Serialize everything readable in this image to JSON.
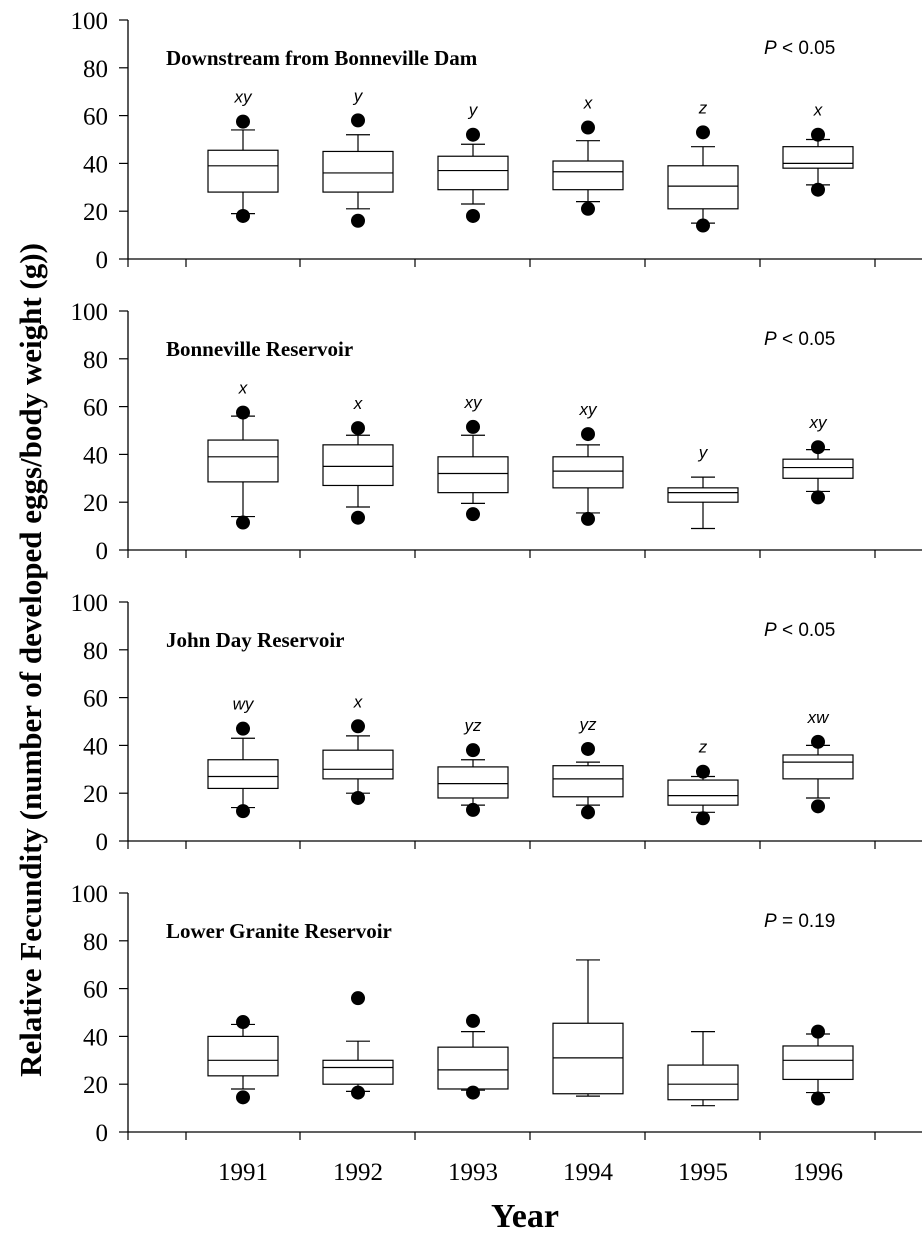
{
  "chart_data": {
    "type": "box",
    "ylabel": "Relative Fecundity (number of developed eggs/body weight (g))",
    "xlabel": "Year",
    "categories": [
      "1991",
      "1992",
      "1993",
      "1994",
      "1995",
      "1996"
    ],
    "ylim": [
      0,
      100
    ],
    "yticks": [
      "0",
      "20",
      "40",
      "60",
      "80",
      "100"
    ],
    "panels": [
      {
        "title": "Downstream from Bonneville Dam",
        "p_symbol": "P",
        "p_rest": " < 0.05",
        "letters": [
          "xy",
          "y",
          "y",
          "x",
          "z",
          "x"
        ],
        "boxes": [
          {
            "whisker_low": 19,
            "q1": 28,
            "median": 39,
            "q3": 45.5,
            "whisker_high": 54,
            "outliers": [
              18,
              57.5
            ]
          },
          {
            "whisker_low": 21,
            "q1": 28,
            "median": 36,
            "q3": 45,
            "whisker_high": 52,
            "outliers": [
              16,
              58
            ]
          },
          {
            "whisker_low": 23,
            "q1": 29,
            "median": 37,
            "q3": 43,
            "whisker_high": 48,
            "outliers": [
              18,
              52
            ]
          },
          {
            "whisker_low": 24,
            "q1": 29,
            "median": 36.5,
            "q3": 41,
            "whisker_high": 49.5,
            "outliers": [
              21,
              55
            ]
          },
          {
            "whisker_low": 15,
            "q1": 21,
            "median": 30.5,
            "q3": 39,
            "whisker_high": 47,
            "outliers": [
              14,
              53
            ]
          },
          {
            "whisker_low": 31,
            "q1": 38,
            "median": 40,
            "q3": 47,
            "whisker_high": 50,
            "outliers": [
              29,
              52
            ]
          }
        ]
      },
      {
        "title": "Bonneville Reservoir",
        "p_symbol": "P",
        "p_rest": " < 0.05",
        "letters": [
          "x",
          "x",
          "xy",
          "xy",
          "y",
          "xy"
        ],
        "boxes": [
          {
            "whisker_low": 14,
            "q1": 28.5,
            "median": 39,
            "q3": 46,
            "whisker_high": 56,
            "outliers": [
              11.5,
              57.5
            ]
          },
          {
            "whisker_low": 18,
            "q1": 27,
            "median": 35,
            "q3": 44,
            "whisker_high": 48,
            "outliers": [
              13.5,
              51
            ]
          },
          {
            "whisker_low": 19.5,
            "q1": 24,
            "median": 32,
            "q3": 39,
            "whisker_high": 48,
            "outliers": [
              15,
              51.5
            ]
          },
          {
            "whisker_low": 15.5,
            "q1": 26,
            "median": 33,
            "q3": 39,
            "whisker_high": 44,
            "outliers": [
              13,
              48.5
            ]
          },
          {
            "whisker_low": 9,
            "q1": 20,
            "median": 24,
            "q3": 26,
            "whisker_high": 30.5,
            "outliers": []
          },
          {
            "whisker_low": 24.5,
            "q1": 30,
            "median": 34.5,
            "q3": 38,
            "whisker_high": 42,
            "outliers": [
              22,
              43
            ]
          }
        ]
      },
      {
        "title": "John Day Reservoir",
        "p_symbol": "P",
        "p_rest": " < 0.05",
        "letters": [
          "wy",
          "x",
          "yz",
          "yz",
          "z",
          "xw"
        ],
        "boxes": [
          {
            "whisker_low": 14,
            "q1": 22,
            "median": 27,
            "q3": 34,
            "whisker_high": 43,
            "outliers": [
              12.5,
              47
            ]
          },
          {
            "whisker_low": 20,
            "q1": 26,
            "median": 30,
            "q3": 38,
            "whisker_high": 44,
            "outliers": [
              18,
              48
            ]
          },
          {
            "whisker_low": 15,
            "q1": 18,
            "median": 24,
            "q3": 31,
            "whisker_high": 34,
            "outliers": [
              13,
              38
            ]
          },
          {
            "whisker_low": 15,
            "q1": 18.5,
            "median": 26,
            "q3": 31.5,
            "whisker_high": 33,
            "outliers": [
              12,
              38.5
            ]
          },
          {
            "whisker_low": 12,
            "q1": 15,
            "median": 19,
            "q3": 25.5,
            "whisker_high": 27,
            "outliers": [
              9.5,
              29
            ]
          },
          {
            "whisker_low": 18,
            "q1": 26,
            "median": 33,
            "q3": 36,
            "whisker_high": 40,
            "outliers": [
              14.5,
              41.5
            ]
          }
        ]
      },
      {
        "title": "Lower Granite Reservoir",
        "p_symbol": "P",
        "p_rest": " = 0.19",
        "letters": [
          "",
          "",
          "",
          "",
          "",
          ""
        ],
        "boxes": [
          {
            "whisker_low": 18,
            "q1": 23.5,
            "median": 30,
            "q3": 40,
            "whisker_high": 45,
            "outliers": [
              14.5,
              46
            ]
          },
          {
            "whisker_low": 17,
            "q1": 20,
            "median": 27,
            "q3": 30,
            "whisker_high": 38,
            "outliers": [
              16.5,
              56
            ]
          },
          {
            "whisker_low": 17.5,
            "q1": 18,
            "median": 26,
            "q3": 35.5,
            "whisker_high": 42,
            "outliers": [
              16.5,
              46.5
            ]
          },
          {
            "whisker_low": 15,
            "q1": 16,
            "median": 31,
            "q3": 45.5,
            "whisker_high": 72,
            "outliers": []
          },
          {
            "whisker_low": 11,
            "q1": 13.5,
            "median": 20,
            "q3": 28,
            "whisker_high": 42,
            "outliers": []
          },
          {
            "whisker_low": 16.5,
            "q1": 22,
            "median": 30,
            "q3": 36,
            "whisker_high": 41,
            "outliers": [
              14,
              42
            ]
          }
        ]
      }
    ]
  }
}
